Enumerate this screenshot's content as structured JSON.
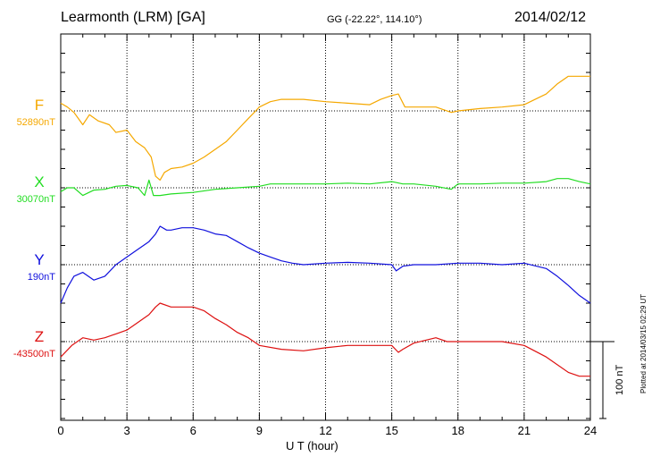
{
  "header": {
    "title": "Learmonth (LRM)  [GA]",
    "coords": "GG (-22.22°, 114.10°)",
    "date": "2014/02/12"
  },
  "plotted_note": "Plotted at 2014/03/15 02:29 UT",
  "chart_data": {
    "type": "line",
    "xlabel": "U T (hour)",
    "xlim": [
      0,
      24
    ],
    "xticks": [
      0,
      3,
      6,
      9,
      12,
      15,
      18,
      21,
      24
    ],
    "scale_bar": {
      "value": 100,
      "label": "100 nT"
    },
    "grid": true,
    "series": [
      {
        "name": "F",
        "baseline_label": "52890nT",
        "color": "#f5a800",
        "baseline": 52890,
        "points": [
          [
            0,
            52900
          ],
          [
            0.3,
            52895
          ],
          [
            0.6,
            52888
          ],
          [
            0.8,
            52880
          ],
          [
            1.0,
            52872
          ],
          [
            1.3,
            52885
          ],
          [
            1.7,
            52877
          ],
          [
            2.2,
            52872
          ],
          [
            2.5,
            52862
          ],
          [
            3.0,
            52865
          ],
          [
            3.4,
            52850
          ],
          [
            3.8,
            52842
          ],
          [
            4.1,
            52830
          ],
          [
            4.3,
            52805
          ],
          [
            4.5,
            52800
          ],
          [
            4.7,
            52810
          ],
          [
            5.0,
            52815
          ],
          [
            5.5,
            52817
          ],
          [
            6.0,
            52822
          ],
          [
            6.5,
            52830
          ],
          [
            7.0,
            52840
          ],
          [
            7.5,
            52850
          ],
          [
            8.0,
            52865
          ],
          [
            8.5,
            52880
          ],
          [
            9.0,
            52895
          ],
          [
            9.5,
            52902
          ],
          [
            10.0,
            52905
          ],
          [
            11.0,
            52905
          ],
          [
            12.0,
            52902
          ],
          [
            13.0,
            52900
          ],
          [
            14.0,
            52898
          ],
          [
            14.5,
            52905
          ],
          [
            15.0,
            52910
          ],
          [
            15.3,
            52912
          ],
          [
            15.6,
            52895
          ],
          [
            16.0,
            52895
          ],
          [
            17.0,
            52895
          ],
          [
            17.7,
            52888
          ],
          [
            18.0,
            52890
          ],
          [
            19.0,
            52893
          ],
          [
            20.0,
            52895
          ],
          [
            21.0,
            52898
          ],
          [
            21.5,
            52905
          ],
          [
            22.0,
            52912
          ],
          [
            22.5,
            52925
          ],
          [
            23.0,
            52935
          ],
          [
            23.5,
            52935
          ],
          [
            24.0,
            52935
          ]
        ]
      },
      {
        "name": "X",
        "baseline_label": "30070nT",
        "color": "#22dd22",
        "baseline": 30070,
        "points": [
          [
            0,
            30065
          ],
          [
            0.3,
            30070
          ],
          [
            0.6,
            30070
          ],
          [
            1.0,
            30060
          ],
          [
            1.5,
            30067
          ],
          [
            2.0,
            30068
          ],
          [
            2.5,
            30072
          ],
          [
            3.0,
            30073
          ],
          [
            3.5,
            30070
          ],
          [
            3.8,
            30060
          ],
          [
            4.0,
            30080
          ],
          [
            4.2,
            30060
          ],
          [
            4.5,
            30060
          ],
          [
            5.0,
            30062
          ],
          [
            6.0,
            30064
          ],
          [
            7.0,
            30068
          ],
          [
            8.0,
            30070
          ],
          [
            9.0,
            30072
          ],
          [
            9.5,
            30075
          ],
          [
            10.0,
            30075
          ],
          [
            11.0,
            30075
          ],
          [
            12.0,
            30075
          ],
          [
            13.0,
            30076
          ],
          [
            14.0,
            30075
          ],
          [
            15.0,
            30078
          ],
          [
            15.5,
            30075
          ],
          [
            16.0,
            30075
          ],
          [
            17.0,
            30072
          ],
          [
            17.7,
            30068
          ],
          [
            18.0,
            30075
          ],
          [
            19.0,
            30075
          ],
          [
            20.0,
            30076
          ],
          [
            21.0,
            30076
          ],
          [
            22.0,
            30078
          ],
          [
            22.5,
            30082
          ],
          [
            23.0,
            30082
          ],
          [
            23.5,
            30078
          ],
          [
            24.0,
            30075
          ]
        ]
      },
      {
        "name": "Y",
        "baseline_label": "190nT",
        "color": "#1010dd",
        "baseline": 190,
        "points": [
          [
            0,
            140
          ],
          [
            0.3,
            160
          ],
          [
            0.6,
            175
          ],
          [
            1.0,
            180
          ],
          [
            1.5,
            170
          ],
          [
            2.0,
            175
          ],
          [
            2.5,
            190
          ],
          [
            3.0,
            200
          ],
          [
            3.5,
            210
          ],
          [
            4.0,
            220
          ],
          [
            4.3,
            230
          ],
          [
            4.5,
            240
          ],
          [
            4.8,
            235
          ],
          [
            5.0,
            235
          ],
          [
            5.5,
            238
          ],
          [
            6.0,
            238
          ],
          [
            6.5,
            235
          ],
          [
            7.0,
            230
          ],
          [
            7.5,
            228
          ],
          [
            8.0,
            220
          ],
          [
            8.5,
            212
          ],
          [
            9.0,
            205
          ],
          [
            9.5,
            200
          ],
          [
            10.0,
            195
          ],
          [
            10.5,
            192
          ],
          [
            11.0,
            190
          ],
          [
            12.0,
            192
          ],
          [
            13.0,
            193
          ],
          [
            14.0,
            192
          ],
          [
            15.0,
            190
          ],
          [
            15.2,
            182
          ],
          [
            15.5,
            188
          ],
          [
            16.0,
            190
          ],
          [
            17.0,
            190
          ],
          [
            18.0,
            192
          ],
          [
            19.0,
            192
          ],
          [
            20.0,
            190
          ],
          [
            21.0,
            192
          ],
          [
            22.0,
            185
          ],
          [
            22.5,
            175
          ],
          [
            23.0,
            163
          ],
          [
            23.5,
            150
          ],
          [
            24.0,
            140
          ]
        ]
      },
      {
        "name": "Z",
        "baseline_label": "-43500nT",
        "color": "#dd1010",
        "baseline": -43500,
        "points": [
          [
            0,
            -43520
          ],
          [
            0.5,
            -43505
          ],
          [
            1.0,
            -43495
          ],
          [
            1.5,
            -43498
          ],
          [
            2.0,
            -43495
          ],
          [
            2.5,
            -43490
          ],
          [
            3.0,
            -43485
          ],
          [
            3.5,
            -43475
          ],
          [
            4.0,
            -43465
          ],
          [
            4.3,
            -43455
          ],
          [
            4.5,
            -43450
          ],
          [
            5.0,
            -43455
          ],
          [
            6.0,
            -43455
          ],
          [
            6.5,
            -43460
          ],
          [
            7.0,
            -43470
          ],
          [
            7.5,
            -43478
          ],
          [
            8.0,
            -43488
          ],
          [
            8.5,
            -43495
          ],
          [
            9.0,
            -43505
          ],
          [
            10.0,
            -43510
          ],
          [
            11.0,
            -43512
          ],
          [
            12.0,
            -43508
          ],
          [
            13.0,
            -43505
          ],
          [
            14.0,
            -43505
          ],
          [
            15.0,
            -43505
          ],
          [
            15.3,
            -43514
          ],
          [
            15.5,
            -43510
          ],
          [
            16.0,
            -43502
          ],
          [
            17.0,
            -43495
          ],
          [
            17.5,
            -43500
          ],
          [
            18.0,
            -43500
          ],
          [
            19.0,
            -43500
          ],
          [
            20.0,
            -43500
          ],
          [
            21.0,
            -43505
          ],
          [
            22.0,
            -43520
          ],
          [
            23.0,
            -43540
          ],
          [
            23.5,
            -43545
          ],
          [
            24.0,
            -43545
          ]
        ]
      }
    ]
  }
}
